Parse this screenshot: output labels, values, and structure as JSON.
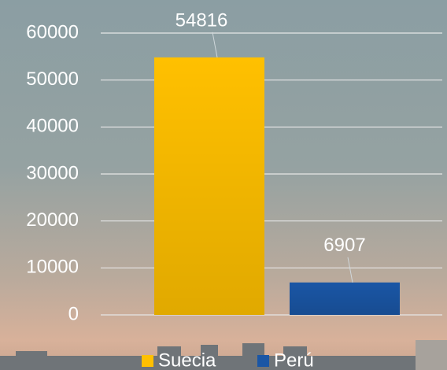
{
  "chart_data": {
    "type": "bar",
    "categories": [
      null
    ],
    "series": [
      {
        "name": "Suecia",
        "color": "#ffc000",
        "values": [
          54816
        ]
      },
      {
        "name": "Perú",
        "color": "#1a56a5",
        "values": [
          6907
        ]
      }
    ],
    "ylim": [
      0,
      60000
    ],
    "yticks": [
      0,
      10000,
      20000,
      30000,
      40000,
      50000,
      60000
    ],
    "grid": true,
    "legend": "bottom"
  }
}
